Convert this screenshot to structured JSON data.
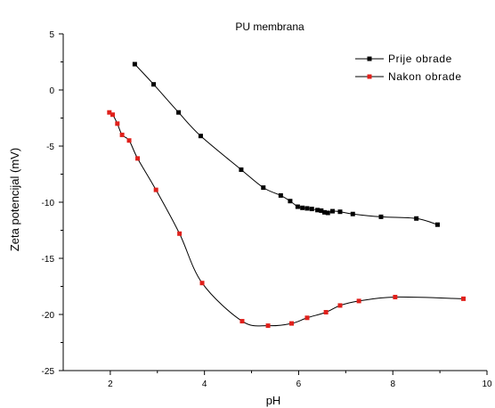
{
  "chart_data": {
    "type": "line",
    "title": "PU membrana",
    "xlabel": "pH",
    "ylabel": "Zeta potencijal (mV)",
    "xlim": [
      1,
      10
    ],
    "ylim": [
      -25,
      5
    ],
    "xticks": [
      2,
      4,
      6,
      8,
      10
    ],
    "yticks": [
      5,
      0,
      -5,
      -10,
      -15,
      -20,
      -25
    ],
    "grid": false,
    "legend_position": "top-right",
    "colors": {
      "axis": "#000000",
      "line": "#000000"
    },
    "series": [
      {
        "name": "Prije obrade",
        "color": "#000000",
        "marker": "square",
        "points": [
          [
            2.52,
            2.3
          ],
          [
            2.92,
            0.5
          ],
          [
            3.45,
            -2.0
          ],
          [
            3.92,
            -4.1
          ],
          [
            4.78,
            -7.1
          ],
          [
            5.25,
            -8.7
          ],
          [
            5.62,
            -9.4
          ],
          [
            5.82,
            -9.9
          ],
          [
            5.98,
            -10.4
          ],
          [
            6.08,
            -10.5
          ],
          [
            6.18,
            -10.55
          ],
          [
            6.28,
            -10.6
          ],
          [
            6.4,
            -10.7
          ],
          [
            6.48,
            -10.75
          ],
          [
            6.55,
            -10.9
          ],
          [
            6.62,
            -10.95
          ],
          [
            6.72,
            -10.8
          ],
          [
            6.88,
            -10.85
          ],
          [
            7.15,
            -11.05
          ],
          [
            7.75,
            -11.3
          ],
          [
            8.5,
            -11.45
          ],
          [
            8.95,
            -12.0
          ]
        ]
      },
      {
        "name": "Nakon obrade",
        "color": "#e0201b",
        "marker": "square",
        "points": [
          [
            1.98,
            -2.0
          ],
          [
            2.05,
            -2.2
          ],
          [
            2.15,
            -3.0
          ],
          [
            2.25,
            -4.0
          ],
          [
            2.4,
            -4.5
          ],
          [
            2.58,
            -6.1
          ],
          [
            2.97,
            -8.9
          ],
          [
            3.47,
            -12.8
          ],
          [
            3.95,
            -17.2
          ],
          [
            4.8,
            -20.6
          ],
          [
            5.35,
            -21.0
          ],
          [
            5.85,
            -20.8
          ],
          [
            6.18,
            -20.3
          ],
          [
            6.58,
            -19.8
          ],
          [
            6.88,
            -19.2
          ],
          [
            7.28,
            -18.8
          ],
          [
            8.05,
            -18.45
          ],
          [
            9.5,
            -18.6
          ]
        ]
      }
    ]
  }
}
